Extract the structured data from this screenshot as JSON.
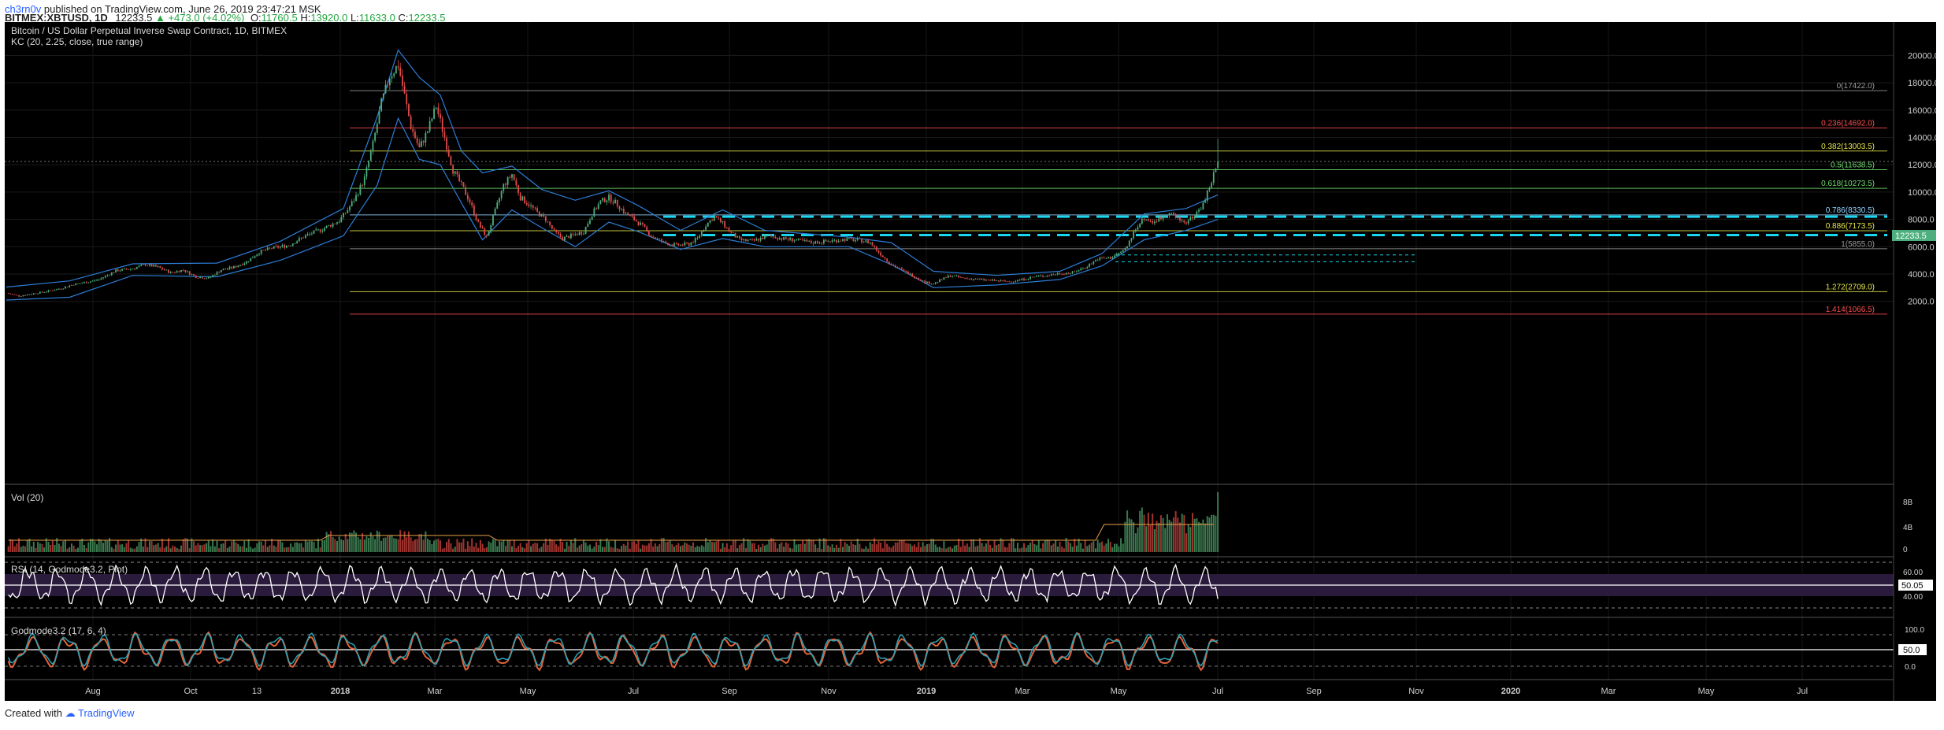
{
  "header": {
    "user": "ch3rn0v",
    "published_text": "published on TradingView.com, June 26, 2019 23:47:21 MSK",
    "symbol_line": "BITMEX:XBTUSD, 1D",
    "last": "12233.5",
    "change": "▲ +473.0 (+4.02%)",
    "o_label": "O:",
    "o_value": "11760.5",
    "h_label": "H:",
    "h_value": "13920.0",
    "l_label": "L:",
    "l_value": "11633.0",
    "c_label": "C:",
    "c_value": "12233.5"
  },
  "chart": {
    "title": "Bitcoin / US Dollar Perpetual Inverse Swap Contract, 1D, BITMEX",
    "indicator_kc": "KC (20, 2.25, close, true range)",
    "vol_label": "Vol (20)",
    "rsi_label": "RSI (14, Godmode3.2, Plot)",
    "god_label": "Godmode3.2 (17, 6, 4)",
    "last_price_tag": "12233.5",
    "rsi_tag": "50.05",
    "god_tag": "50.0"
  },
  "footer": {
    "created_with": "Created with",
    "brand": "TradingView"
  },
  "colors": {
    "background": "#000000",
    "up": "#4caf7d",
    "down": "#e04b4b",
    "band": "#2c7dd6",
    "fib_red": "#ff4d4d",
    "fib_yellow": "#e6e64a",
    "fib_green": "#6fdc6f",
    "fib_grey": "#9a9a9a",
    "support_cyan": "#19d6ee",
    "rsi_fill": "#2a1b3d"
  },
  "chart_data": {
    "type": "candlestick",
    "symbol": "XBTUSD",
    "timeframe": "1D",
    "y_ticks": [
      2000,
      4000,
      6000,
      8000,
      10000,
      12000,
      14000,
      16000,
      18000,
      20000
    ],
    "y_tick_labels": [
      "2000.0",
      "4000.0",
      "6000.0",
      "8000.0",
      "10000.0",
      "12000.0",
      "14000.0",
      "16000.0",
      "18000.0",
      "20000.0"
    ],
    "x_labels": [
      "Aug",
      "Oct",
      "13",
      "2018",
      "Mar",
      "May",
      "Jul",
      "Sep",
      "Nov",
      "2019",
      "Mar",
      "May",
      "Jul",
      "Sep",
      "Nov",
      "2020",
      "Mar",
      "May",
      "Jul"
    ],
    "price_path": [
      [
        0,
        2600
      ],
      [
        6,
        2400
      ],
      [
        12,
        2550
      ],
      [
        20,
        2750
      ],
      [
        26,
        2950
      ],
      [
        32,
        3250
      ],
      [
        38,
        3400
      ],
      [
        44,
        3600
      ],
      [
        52,
        4250
      ],
      [
        60,
        4400
      ],
      [
        66,
        4700
      ],
      [
        72,
        4500
      ],
      [
        78,
        4100
      ],
      [
        84,
        4300
      ],
      [
        90,
        3800
      ],
      [
        96,
        3700
      ],
      [
        102,
        4300
      ],
      [
        108,
        4500
      ],
      [
        114,
        4900
      ],
      [
        120,
        5600
      ],
      [
        126,
        5900
      ],
      [
        134,
        6100
      ],
      [
        142,
        6800
      ],
      [
        150,
        7300
      ],
      [
        158,
        7900
      ],
      [
        162,
        8700
      ],
      [
        166,
        9700
      ],
      [
        170,
        11000
      ],
      [
        174,
        13500
      ],
      [
        178,
        16500
      ],
      [
        182,
        18500
      ],
      [
        186,
        19300
      ],
      [
        188,
        17800
      ],
      [
        192,
        14800
      ],
      [
        196,
        13200
      ],
      [
        200,
        14500
      ],
      [
        204,
        16300
      ],
      [
        208,
        14000
      ],
      [
        212,
        11600
      ],
      [
        216,
        10500
      ],
      [
        220,
        9300
      ],
      [
        224,
        7700
      ],
      [
        228,
        6700
      ],
      [
        232,
        8600
      ],
      [
        236,
        10500
      ],
      [
        240,
        11300
      ],
      [
        244,
        9600
      ],
      [
        248,
        9100
      ],
      [
        252,
        8500
      ],
      [
        256,
        8000
      ],
      [
        260,
        7100
      ],
      [
        264,
        6600
      ],
      [
        268,
        6800
      ],
      [
        274,
        7100
      ],
      [
        278,
        8400
      ],
      [
        282,
        9300
      ],
      [
        286,
        9600
      ],
      [
        290,
        9100
      ],
      [
        294,
        8400
      ],
      [
        298,
        8000
      ],
      [
        302,
        7500
      ],
      [
        306,
        6800
      ],
      [
        312,
        6300
      ],
      [
        318,
        6100
      ],
      [
        324,
        6200
      ],
      [
        328,
        6600
      ],
      [
        332,
        7600
      ],
      [
        336,
        8200
      ],
      [
        340,
        7700
      ],
      [
        344,
        7000
      ],
      [
        348,
        6500
      ],
      [
        354,
        6400
      ],
      [
        362,
        6800
      ],
      [
        368,
        6600
      ],
      [
        374,
        6500
      ],
      [
        382,
        6300
      ],
      [
        390,
        6400
      ],
      [
        398,
        6550
      ],
      [
        406,
        6450
      ],
      [
        410,
        6300
      ],
      [
        414,
        5600
      ],
      [
        420,
        4700
      ],
      [
        426,
        4200
      ],
      [
        432,
        3750
      ],
      [
        436,
        3400
      ],
      [
        440,
        3300
      ],
      [
        444,
        3600
      ],
      [
        448,
        3900
      ],
      [
        454,
        3700
      ],
      [
        462,
        3600
      ],
      [
        470,
        3500
      ],
      [
        476,
        3450
      ],
      [
        482,
        3600
      ],
      [
        488,
        3800
      ],
      [
        494,
        3900
      ],
      [
        500,
        4050
      ],
      [
        506,
        4100
      ],
      [
        512,
        4500
      ],
      [
        518,
        5100
      ],
      [
        524,
        5200
      ],
      [
        528,
        5500
      ],
      [
        532,
        6000
      ],
      [
        536,
        7400
      ],
      [
        540,
        8100
      ],
      [
        544,
        7800
      ],
      [
        548,
        8100
      ],
      [
        552,
        8600
      ],
      [
        556,
        8000
      ],
      [
        560,
        7800
      ],
      [
        564,
        8300
      ],
      [
        568,
        9100
      ],
      [
        572,
        10800
      ],
      [
        575,
        12233.5
      ]
    ],
    "keltner": {
      "upper": [
        [
          0,
          3050
        ],
        [
          30,
          3500
        ],
        [
          60,
          4750
        ],
        [
          100,
          4800
        ],
        [
          130,
          6400
        ],
        [
          160,
          8800
        ],
        [
          176,
          15500
        ],
        [
          186,
          20400
        ],
        [
          196,
          18400
        ],
        [
          206,
          17100
        ],
        [
          216,
          13000
        ],
        [
          226,
          11400
        ],
        [
          240,
          11900
        ],
        [
          254,
          10200
        ],
        [
          270,
          9400
        ],
        [
          286,
          10100
        ],
        [
          300,
          9000
        ],
        [
          320,
          7200
        ],
        [
          340,
          8700
        ],
        [
          360,
          7200
        ],
        [
          400,
          6700
        ],
        [
          420,
          6300
        ],
        [
          440,
          4200
        ],
        [
          470,
          3900
        ],
        [
          500,
          4200
        ],
        [
          520,
          5500
        ],
        [
          540,
          8400
        ],
        [
          560,
          8800
        ],
        [
          575,
          9800
        ]
      ],
      "lower": [
        [
          0,
          2100
        ],
        [
          30,
          2300
        ],
        [
          60,
          3900
        ],
        [
          100,
          3800
        ],
        [
          130,
          5000
        ],
        [
          160,
          6800
        ],
        [
          176,
          10500
        ],
        [
          186,
          15400
        ],
        [
          196,
          12400
        ],
        [
          206,
          12000
        ],
        [
          216,
          9200
        ],
        [
          226,
          6500
        ],
        [
          240,
          8700
        ],
        [
          254,
          7400
        ],
        [
          270,
          6000
        ],
        [
          286,
          7800
        ],
        [
          300,
          7100
        ],
        [
          320,
          5800
        ],
        [
          340,
          6600
        ],
        [
          360,
          6000
        ],
        [
          400,
          6000
        ],
        [
          420,
          4700
        ],
        [
          440,
          3000
        ],
        [
          470,
          3200
        ],
        [
          500,
          3600
        ],
        [
          520,
          4600
        ],
        [
          540,
          6500
        ],
        [
          560,
          7200
        ],
        [
          575,
          8000
        ]
      ]
    },
    "fibonacci": [
      {
        "label": "0(17422.0)",
        "value": 17422.0,
        "color": "grey"
      },
      {
        "label": "0.236(14692.0)",
        "value": 14692.0,
        "color": "red"
      },
      {
        "label": "0.382(13003.5)",
        "value": 13003.5,
        "color": "yellow"
      },
      {
        "label": "0.5(11638.5)",
        "value": 11638.5,
        "color": "green"
      },
      {
        "label": "0.618(10273.5)",
        "value": 10273.5,
        "color": "green"
      },
      {
        "label": "0.786(8330.5)",
        "value": 8330.5,
        "color": "cyan"
      },
      {
        "label": "0.886(7173.5)",
        "value": 7173.5,
        "color": "yellow"
      },
      {
        "label": "1(5855.0)",
        "value": 5855.0,
        "color": "grey"
      },
      {
        "label": "1.272(2709.0)",
        "value": 2709.0,
        "color": "yellow"
      },
      {
        "label": "1.414(1066.5)",
        "value": 1066.5,
        "color": "red"
      }
    ],
    "support_lines": [
      8200,
      6850
    ],
    "rsi_levels": [
      60.0,
      40.0
    ],
    "rsi_tick_labels": [
      "60.00",
      "40.00"
    ],
    "vol_tick_labels": [
      "8B",
      "4B",
      "0"
    ],
    "god_tick_labels": [
      "100.0",
      "0.0"
    ],
    "rsi_last": 50.05,
    "godmode_last": 50.0
  }
}
